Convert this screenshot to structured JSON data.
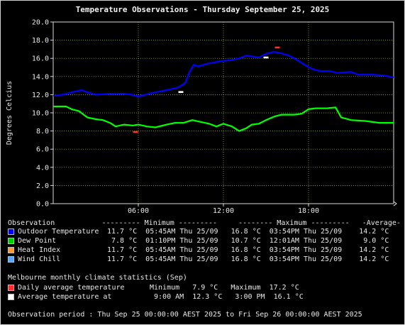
{
  "title": "Temperature Observations - Thursday September 25, 2025",
  "chart_data": {
    "type": "line",
    "ylabel": "Degrees Celcius",
    "ylim": [
      0,
      20
    ],
    "yticks": [
      "0.0",
      "2.0",
      "4.0",
      "6.0",
      "8.0",
      "10.0",
      "12.0",
      "14.0",
      "16.0",
      "18.0",
      "20.0"
    ],
    "xlim": [
      0,
      24
    ],
    "xticks": [
      {
        "x": 6,
        "label": "06:00"
      },
      {
        "x": 12,
        "label": "12:00"
      },
      {
        "x": 18,
        "label": "18:00"
      }
    ],
    "grid": true,
    "series": [
      {
        "name": "Outdoor Temperature",
        "color": "#0000ff",
        "points": [
          [
            0,
            11.9
          ],
          [
            0.7,
            12.0
          ],
          [
            1.4,
            12.3
          ],
          [
            2.0,
            12.5
          ],
          [
            2.5,
            12.2
          ],
          [
            3.0,
            12.0
          ],
          [
            4.0,
            12.1
          ],
          [
            5.0,
            12.1
          ],
          [
            5.5,
            12.0
          ],
          [
            6.0,
            11.8
          ],
          [
            6.5,
            12.0
          ],
          [
            7.0,
            12.2
          ],
          [
            8.0,
            12.5
          ],
          [
            8.8,
            12.8
          ],
          [
            9.3,
            13.3
          ],
          [
            9.6,
            14.5
          ],
          [
            9.9,
            15.3
          ],
          [
            10.2,
            15.1
          ],
          [
            10.8,
            15.4
          ],
          [
            11.2,
            15.5
          ],
          [
            11.8,
            15.7
          ],
          [
            12.5,
            15.8
          ],
          [
            13.1,
            16.0
          ],
          [
            13.6,
            16.3
          ],
          [
            14.0,
            16.2
          ],
          [
            14.5,
            16.1
          ],
          [
            15.0,
            16.5
          ],
          [
            15.5,
            16.7
          ],
          [
            16.0,
            16.6
          ],
          [
            16.6,
            16.3
          ],
          [
            17.0,
            16.0
          ],
          [
            17.4,
            15.6
          ],
          [
            17.8,
            15.2
          ],
          [
            18.3,
            14.8
          ],
          [
            18.8,
            14.6
          ],
          [
            19.5,
            14.6
          ],
          [
            20.0,
            14.4
          ],
          [
            21.0,
            14.5
          ],
          [
            21.5,
            14.2
          ],
          [
            22.5,
            14.2
          ],
          [
            23.3,
            14.1
          ],
          [
            24,
            13.9
          ]
        ]
      },
      {
        "name": "Dew Point",
        "color": "#00ff00",
        "points": [
          [
            0,
            10.7
          ],
          [
            0.9,
            10.7
          ],
          [
            1.3,
            10.4
          ],
          [
            1.8,
            10.2
          ],
          [
            2.4,
            9.5
          ],
          [
            3.0,
            9.3
          ],
          [
            3.5,
            9.2
          ],
          [
            4.0,
            8.9
          ],
          [
            4.4,
            8.5
          ],
          [
            5.0,
            8.7
          ],
          [
            5.6,
            8.6
          ],
          [
            6.0,
            8.7
          ],
          [
            6.6,
            8.5
          ],
          [
            7.2,
            8.4
          ],
          [
            8.0,
            8.7
          ],
          [
            8.6,
            8.9
          ],
          [
            9.2,
            8.9
          ],
          [
            9.8,
            9.2
          ],
          [
            10.4,
            9.0
          ],
          [
            11.0,
            8.8
          ],
          [
            11.5,
            8.5
          ],
          [
            12.0,
            8.8
          ],
          [
            12.6,
            8.5
          ],
          [
            13.1,
            8.0
          ],
          [
            13.6,
            8.3
          ],
          [
            14.0,
            8.7
          ],
          [
            14.5,
            8.8
          ],
          [
            15.0,
            9.2
          ],
          [
            15.6,
            9.6
          ],
          [
            16.1,
            9.8
          ],
          [
            17.0,
            9.8
          ],
          [
            17.5,
            9.9
          ],
          [
            18.0,
            10.4
          ],
          [
            18.5,
            10.5
          ],
          [
            19.3,
            10.5
          ],
          [
            19.9,
            10.6
          ],
          [
            20.3,
            9.5
          ],
          [
            21.0,
            9.2
          ],
          [
            22.0,
            9.1
          ],
          [
            23.0,
            8.9
          ],
          [
            24,
            8.9
          ]
        ]
      }
    ],
    "climate_markers": [
      {
        "type": "daily-average-max",
        "x": 15.8,
        "y": 17.2,
        "color": "#ff3030"
      },
      {
        "type": "daily-average-min",
        "x": 5.8,
        "y": 7.9,
        "color": "#ff3030"
      },
      {
        "type": "average-temperature",
        "x": 15.0,
        "y": 16.1,
        "color": "#ffffff"
      },
      {
        "type": "average-temperature",
        "x": 9.0,
        "y": 12.3,
        "color": "#ffffff"
      }
    ]
  },
  "table": {
    "header": "Observation           --------- Minimum ---------     -------- Maximum ---------   -Average-",
    "rows": [
      {
        "label": "Outdoor Temperature",
        "color": "#0000ff",
        "values": "11.7 °C  05:45AM Thu 25/09   16.8 °C  03:54PM Thu 25/09    14.2 °C"
      },
      {
        "label": "Dew Point",
        "color": "#00cc00",
        "values": " 7.8 °C  01:10PM Thu 25/09   10.7 °C  12:01AM Thu 25/09     9.0 °C"
      },
      {
        "label": "Heat Index",
        "color": "#ff9933",
        "values": "11.7 °C  05:45AM Thu 25/09   16.8 °C  03:54PM Thu 25/09    14.2 °C"
      },
      {
        "label": "Wind Chill",
        "color": "#55aaff",
        "values": "11.7 °C  05:45AM Thu 25/09   16.8 °C  03:54PM Thu 25/09    14.2 °C"
      }
    ]
  },
  "climate": {
    "header": "Melbourne monthly climate statistics (Sep)",
    "rows": [
      {
        "label": "Daily average temperature",
        "color": "#ff3030",
        "values": "Minimum   7.9 °C   Maximum  17.2 °C"
      },
      {
        "label": "Average temperature at",
        "color": "#ffffff",
        "values": " 9:00 AM  12.3 °C   3:00 PM  16.1 °C"
      }
    ]
  },
  "period": "Observation period : Thu Sep 25 00:00:00 AEST 2025 to Fri Sep 26 00:00:00 AEST 2025"
}
